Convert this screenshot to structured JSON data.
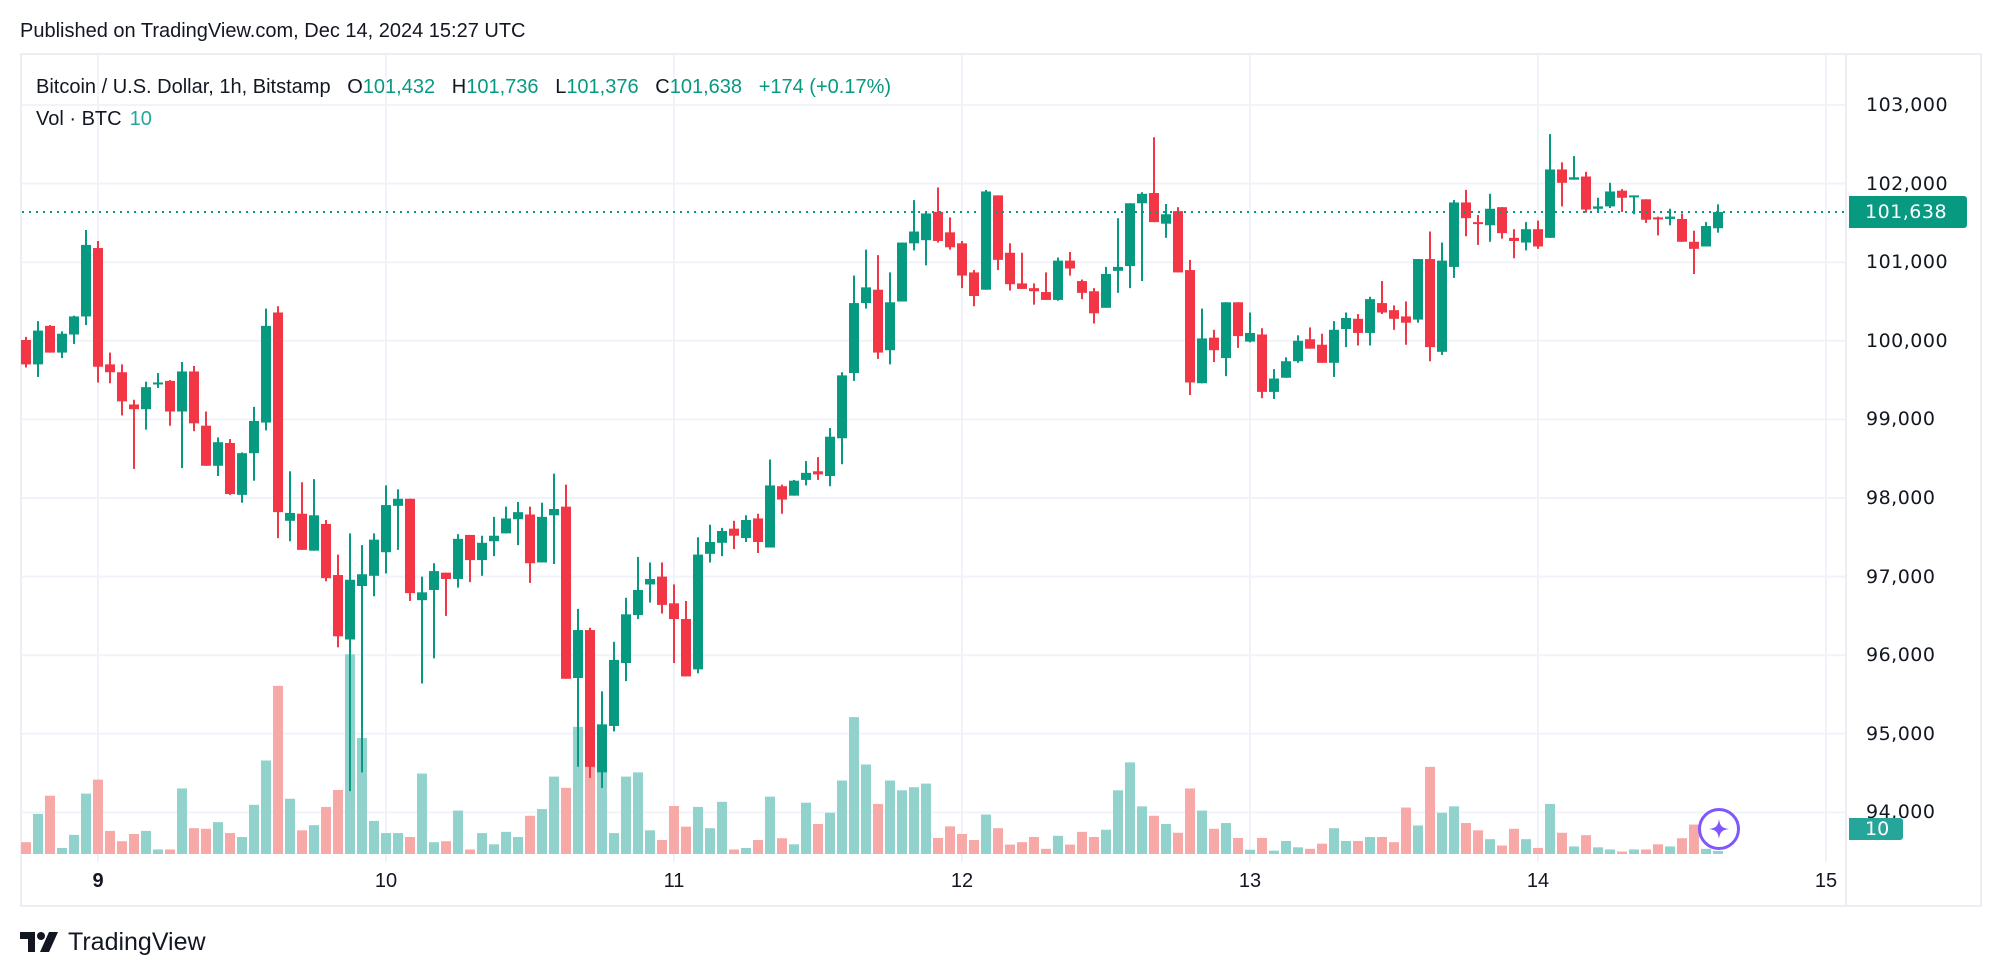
{
  "published": "Published on TradingView.com, Dec 14, 2024 15:27 UTC",
  "legend": {
    "symbol": "Bitcoin / U.S. Dollar, 1h, Bitstamp",
    "open_label": "O",
    "open": "101,432",
    "high_label": "H",
    "high": "101,736",
    "low_label": "L",
    "low": "101,376",
    "close_label": "C",
    "close": "101,638",
    "change": "+174 (+0.17%)"
  },
  "volume_legend": {
    "label": "Vol · BTC",
    "value": "10"
  },
  "last_price_tag": "101,638",
  "volume_tag": "10",
  "brand": "TradingView",
  "colors": {
    "up": "#089981",
    "down": "#f23645",
    "vol_up": "#92d2cc",
    "vol_down": "#f7a9a7",
    "grid": "#f0f3fa",
    "ai_icon": "#7e57ff"
  },
  "icons": {
    "ai": "sparkle-icon",
    "logo": "tradingview-logo"
  },
  "chart_data": {
    "type": "candlestick",
    "interval": "1h",
    "y_ticks": [
      "103,000",
      "102,000",
      "101,000",
      "100,000",
      "99,000",
      "98,000",
      "97,000",
      "96,000",
      "95,000",
      "94,000"
    ],
    "ylim": [
      93500,
      103600
    ],
    "x_ticks": [
      {
        "label": "9",
        "t": "2024-12-09 00:00",
        "bold": true
      },
      {
        "label": "10",
        "t": "2024-12-10 00:00"
      },
      {
        "label": "11",
        "t": "2024-12-11 00:00"
      },
      {
        "label": "12",
        "t": "2024-12-12 00:00"
      },
      {
        "label": "13",
        "t": "2024-12-13 00:00"
      },
      {
        "label": "14",
        "t": "2024-12-14 00:00"
      },
      {
        "label": "15",
        "t": "2024-12-15 00:00"
      }
    ],
    "grid": true,
    "last_price": 101638,
    "columns": [
      "time",
      "open",
      "high",
      "low",
      "close",
      "volume"
    ],
    "candles": [
      [
        "2024-12-08 18:00",
        100010,
        100050,
        99660,
        99700,
        39
      ],
      [
        "2024-12-08 19:00",
        99700,
        100250,
        99540,
        100130,
        132
      ],
      [
        "2024-12-08 20:00",
        100190,
        100200,
        99850,
        99850,
        192
      ],
      [
        "2024-12-08 21:00",
        99850,
        100120,
        99780,
        100090,
        20
      ],
      [
        "2024-12-08 22:00",
        100080,
        100320,
        99960,
        100310,
        63
      ],
      [
        "2024-12-08 23:00",
        100310,
        101410,
        100200,
        101220,
        199
      ],
      [
        "2024-12-09 00:00",
        101180,
        101270,
        99470,
        99670,
        245
      ],
      [
        "2024-12-09 01:00",
        99700,
        99850,
        99460,
        99600,
        76
      ],
      [
        "2024-12-09 02:00",
        99600,
        99700,
        99050,
        99230,
        42
      ],
      [
        "2024-12-09 03:00",
        99190,
        99250,
        98370,
        99130,
        66
      ],
      [
        "2024-12-09 04:00",
        99130,
        99480,
        98870,
        99410,
        76
      ],
      [
        "2024-12-09 05:00",
        99460,
        99590,
        99400,
        99470,
        15
      ],
      [
        "2024-12-09 06:00",
        99490,
        99500,
        98920,
        99100,
        15
      ],
      [
        "2024-12-09 07:00",
        99100,
        99730,
        98380,
        99610,
        216
      ],
      [
        "2024-12-09 08:00",
        99610,
        99680,
        98850,
        98950,
        85
      ],
      [
        "2024-12-09 09:00",
        98920,
        99100,
        98410,
        98410,
        83
      ],
      [
        "2024-12-09 10:00",
        98410,
        98770,
        98280,
        98710,
        105
      ],
      [
        "2024-12-09 11:00",
        98700,
        98750,
        98040,
        98050,
        69
      ],
      [
        "2024-12-09 12:00",
        98040,
        98580,
        97940,
        98570,
        56
      ],
      [
        "2024-12-09 13:00",
        98570,
        99160,
        98220,
        98980,
        162
      ],
      [
        "2024-12-09 14:00",
        98960,
        100410,
        98860,
        100190,
        308
      ],
      [
        "2024-12-09 15:00",
        100360,
        100440,
        97490,
        97820,
        554
      ],
      [
        "2024-12-09 16:00",
        97710,
        98340,
        97450,
        97810,
        182
      ],
      [
        "2024-12-09 17:00",
        97800,
        98200,
        97340,
        97340,
        78
      ],
      [
        "2024-12-09 18:00",
        97330,
        98240,
        97330,
        97780,
        95
      ],
      [
        "2024-12-09 19:00",
        97670,
        97720,
        96940,
        96980,
        155
      ],
      [
        "2024-12-09 20:00",
        97020,
        97280,
        96100,
        96240,
        211
      ],
      [
        "2024-12-09 21:00",
        96200,
        97550,
        94270,
        96960,
        658
      ],
      [
        "2024-12-09 22:00",
        96880,
        97400,
        94510,
        97030,
        382
      ],
      [
        "2024-12-09 23:00",
        97010,
        97550,
        96750,
        97470,
        109
      ],
      [
        "2024-12-10 00:00",
        97310,
        98160,
        97040,
        97910,
        69
      ],
      [
        "2024-12-10 01:00",
        97900,
        98110,
        97340,
        97990,
        69
      ],
      [
        "2024-12-10 02:00",
        97990,
        97990,
        96690,
        96790,
        56
      ],
      [
        "2024-12-10 03:00",
        96700,
        97000,
        95640,
        96800,
        265
      ],
      [
        "2024-12-10 04:00",
        96830,
        97170,
        95960,
        97070,
        39
      ],
      [
        "2024-12-10 05:00",
        97050,
        97050,
        96500,
        96970,
        42
      ],
      [
        "2024-12-10 06:00",
        96970,
        97540,
        96860,
        97480,
        143
      ],
      [
        "2024-12-10 07:00",
        97530,
        97530,
        96930,
        97210,
        15
      ],
      [
        "2024-12-10 08:00",
        97210,
        97520,
        97010,
        97430,
        69
      ],
      [
        "2024-12-10 09:00",
        97450,
        97760,
        97260,
        97520,
        32
      ],
      [
        "2024-12-10 10:00",
        97550,
        97890,
        97550,
        97740,
        73
      ],
      [
        "2024-12-10 11:00",
        97730,
        97950,
        97400,
        97820,
        56
      ],
      [
        "2024-12-10 12:00",
        97790,
        97890,
        96920,
        97170,
        126
      ],
      [
        "2024-12-10 13:00",
        97180,
        97940,
        97180,
        97760,
        148
      ],
      [
        "2024-12-10 14:00",
        97780,
        98310,
        97160,
        97860,
        255
      ],
      [
        "2024-12-10 15:00",
        97890,
        98170,
        95700,
        95700,
        218
      ],
      [
        "2024-12-10 16:00",
        95710,
        96590,
        94580,
        96320,
        419
      ],
      [
        "2024-12-10 17:00",
        96320,
        96350,
        94440,
        94580,
        302
      ],
      [
        "2024-12-10 18:00",
        94510,
        95540,
        94310,
        95120,
        281
      ],
      [
        "2024-12-10 19:00",
        95100,
        96170,
        95030,
        95940,
        69
      ],
      [
        "2024-12-10 20:00",
        95900,
        96730,
        95670,
        96520,
        255
      ],
      [
        "2024-12-10 21:00",
        96510,
        97250,
        96460,
        96830,
        269
      ],
      [
        "2024-12-10 22:00",
        96900,
        97180,
        96670,
        96970,
        78
      ],
      [
        "2024-12-10 23:00",
        97000,
        97180,
        96530,
        96640,
        46
      ],
      [
        "2024-12-11 00:00",
        96660,
        96900,
        95900,
        96460,
        158
      ],
      [
        "2024-12-11 01:00",
        96460,
        96690,
        95730,
        95730,
        90
      ],
      [
        "2024-12-11 02:00",
        95820,
        97500,
        95770,
        97280,
        155
      ],
      [
        "2024-12-11 03:00",
        97290,
        97660,
        97180,
        97440,
        85
      ],
      [
        "2024-12-11 04:00",
        97430,
        97620,
        97260,
        97580,
        172
      ],
      [
        "2024-12-11 05:00",
        97610,
        97710,
        97350,
        97520,
        15
      ],
      [
        "2024-12-11 06:00",
        97490,
        97780,
        97440,
        97720,
        20
      ],
      [
        "2024-12-11 07:00",
        97740,
        97800,
        97300,
        97440,
        46
      ],
      [
        "2024-12-11 08:00",
        97370,
        98490,
        97370,
        98160,
        189
      ],
      [
        "2024-12-11 09:00",
        98150,
        98170,
        97800,
        97980,
        52
      ],
      [
        "2024-12-11 10:00",
        98030,
        98230,
        98030,
        98220,
        32
      ],
      [
        "2024-12-11 11:00",
        98230,
        98470,
        98160,
        98320,
        169
      ],
      [
        "2024-12-11 12:00",
        98340,
        98520,
        98230,
        98300,
        99
      ],
      [
        "2024-12-11 13:00",
        98280,
        98890,
        98150,
        98780,
        136
      ],
      [
        "2024-12-11 14:00",
        98760,
        99600,
        98430,
        99560,
        242
      ],
      [
        "2024-12-11 15:00",
        99590,
        100830,
        99490,
        100480,
        451
      ],
      [
        "2024-12-11 16:00",
        100480,
        101160,
        100410,
        100680,
        295
      ],
      [
        "2024-12-11 17:00",
        100650,
        101090,
        99770,
        99850,
        165
      ],
      [
        "2024-12-11 18:00",
        99880,
        100870,
        99700,
        100490,
        242
      ],
      [
        "2024-12-11 19:00",
        100500,
        101250,
        100500,
        101250,
        210
      ],
      [
        "2024-12-11 20:00",
        101240,
        101790,
        101150,
        101390,
        220
      ],
      [
        "2024-12-11 21:00",
        101280,
        101640,
        100960,
        101620,
        232
      ],
      [
        "2024-12-11 22:00",
        101640,
        101950,
        101250,
        101270,
        53
      ],
      [
        "2024-12-11 23:00",
        101380,
        101570,
        101160,
        101190,
        91
      ],
      [
        "2024-12-12 00:00",
        101240,
        101270,
        100670,
        100830,
        66
      ],
      [
        "2024-12-12 01:00",
        100870,
        100900,
        100440,
        100570,
        46
      ],
      [
        "2024-12-12 02:00",
        100650,
        101920,
        100650,
        101900,
        130
      ],
      [
        "2024-12-12 03:00",
        101850,
        101850,
        100900,
        101030,
        85
      ],
      [
        "2024-12-12 04:00",
        101120,
        101240,
        100640,
        100720,
        31
      ],
      [
        "2024-12-12 05:00",
        100730,
        101120,
        100660,
        100660,
        39
      ],
      [
        "2024-12-12 06:00",
        100670,
        100730,
        100460,
        100630,
        56
      ],
      [
        "2024-12-12 07:00",
        100620,
        100870,
        100520,
        100520,
        17
      ],
      [
        "2024-12-12 08:00",
        100520,
        101060,
        100510,
        101020,
        60
      ],
      [
        "2024-12-12 09:00",
        101020,
        101130,
        100830,
        100920,
        31
      ],
      [
        "2024-12-12 10:00",
        100760,
        100780,
        100530,
        100610,
        73
      ],
      [
        "2024-12-12 11:00",
        100630,
        100670,
        100220,
        100350,
        56
      ],
      [
        "2024-12-12 12:00",
        100420,
        100940,
        100420,
        100850,
        80
      ],
      [
        "2024-12-12 13:00",
        100890,
        101560,
        100610,
        100940,
        210
      ],
      [
        "2024-12-12 14:00",
        100950,
        101750,
        100670,
        101750,
        302
      ],
      [
        "2024-12-12 15:00",
        101750,
        101890,
        100760,
        101870,
        157
      ],
      [
        "2024-12-12 16:00",
        101880,
        102590,
        101510,
        101510,
        126
      ],
      [
        "2024-12-12 17:00",
        101490,
        101740,
        101310,
        101610,
        99
      ],
      [
        "2024-12-12 18:00",
        101650,
        101700,
        100870,
        100870,
        70
      ],
      [
        "2024-12-12 19:00",
        100900,
        101030,
        99310,
        99470,
        216
      ],
      [
        "2024-12-12 20:00",
        99460,
        100410,
        99460,
        100030,
        143
      ],
      [
        "2024-12-12 21:00",
        100040,
        100140,
        99730,
        99880,
        83
      ],
      [
        "2024-12-12 22:00",
        99780,
        100490,
        99550,
        100490,
        102
      ],
      [
        "2024-12-12 23:00",
        100490,
        100490,
        99910,
        100060,
        53
      ],
      [
        "2024-12-13 00:00",
        99990,
        100360,
        99980,
        100100,
        14
      ],
      [
        "2024-12-13 01:00",
        100080,
        100160,
        99270,
        99350,
        53
      ],
      [
        "2024-12-13 02:00",
        99350,
        99640,
        99260,
        99520,
        11
      ],
      [
        "2024-12-13 03:00",
        99530,
        99790,
        99530,
        99740,
        43
      ],
      [
        "2024-12-13 04:00",
        99740,
        100070,
        99720,
        100000,
        22
      ],
      [
        "2024-12-13 05:00",
        100020,
        100170,
        99900,
        99900,
        17
      ],
      [
        "2024-12-13 06:00",
        99950,
        100090,
        99720,
        99720,
        34
      ],
      [
        "2024-12-13 07:00",
        99720,
        100250,
        99540,
        100140,
        85
      ],
      [
        "2024-12-13 08:00",
        100150,
        100360,
        99920,
        100290,
        43
      ],
      [
        "2024-12-13 09:00",
        100280,
        100340,
        99940,
        100100,
        43
      ],
      [
        "2024-12-13 10:00",
        100100,
        100560,
        99940,
        100530,
        56
      ],
      [
        "2024-12-13 11:00",
        100480,
        100760,
        100340,
        100360,
        56
      ],
      [
        "2024-12-13 12:00",
        100390,
        100450,
        100140,
        100280,
        39
      ],
      [
        "2024-12-13 13:00",
        100310,
        100500,
        99950,
        100230,
        153
      ],
      [
        "2024-12-13 14:00",
        100270,
        101040,
        100230,
        101040,
        94
      ],
      [
        "2024-12-13 15:00",
        101040,
        101390,
        99740,
        99920,
        287
      ],
      [
        "2024-12-13 16:00",
        99860,
        101250,
        99820,
        101020,
        136
      ],
      [
        "2024-12-13 17:00",
        100940,
        101790,
        100800,
        101760,
        157
      ],
      [
        "2024-12-13 18:00",
        101760,
        101920,
        101330,
        101560,
        102
      ],
      [
        "2024-12-13 19:00",
        101510,
        101600,
        101220,
        101500,
        78
      ],
      [
        "2024-12-13 20:00",
        101470,
        101870,
        101260,
        101680,
        49
      ],
      [
        "2024-12-13 21:00",
        101700,
        101700,
        101300,
        101370,
        28
      ],
      [
        "2024-12-13 22:00",
        101310,
        101420,
        101050,
        101270,
        83
      ],
      [
        "2024-12-13 23:00",
        101250,
        101510,
        101150,
        101420,
        49
      ],
      [
        "2024-12-14 00:00",
        101420,
        101530,
        101170,
        101200,
        20
      ],
      [
        "2024-12-14 01:00",
        101310,
        102630,
        101310,
        102180,
        165
      ],
      [
        "2024-12-14 02:00",
        102180,
        102270,
        101710,
        102010,
        70
      ],
      [
        "2024-12-14 03:00",
        102050,
        102350,
        102050,
        102080,
        25
      ],
      [
        "2024-12-14 04:00",
        102090,
        102150,
        101630,
        101670,
        62
      ],
      [
        "2024-12-14 05:00",
        101680,
        101820,
        101640,
        101710,
        22
      ],
      [
        "2024-12-14 06:00",
        101710,
        102010,
        101690,
        101900,
        15
      ],
      [
        "2024-12-14 07:00",
        101910,
        101930,
        101640,
        101820,
        8
      ],
      [
        "2024-12-14 08:00",
        101840,
        101850,
        101610,
        101850,
        15
      ],
      [
        "2024-12-14 09:00",
        101800,
        101800,
        101500,
        101540,
        15
      ],
      [
        "2024-12-14 10:00",
        101570,
        101580,
        101340,
        101550,
        32
      ],
      [
        "2024-12-14 11:00",
        101550,
        101680,
        101470,
        101580,
        25
      ],
      [
        "2024-12-14 12:00",
        101550,
        101620,
        101260,
        101260,
        52
      ],
      [
        "2024-12-14 13:00",
        101260,
        101400,
        100850,
        101170,
        97
      ],
      [
        "2024-12-14 14:00",
        101200,
        101510,
        101200,
        101460,
        17
      ],
      [
        "2024-12-14 15:00",
        101432,
        101736,
        101376,
        101638,
        10
      ]
    ]
  }
}
